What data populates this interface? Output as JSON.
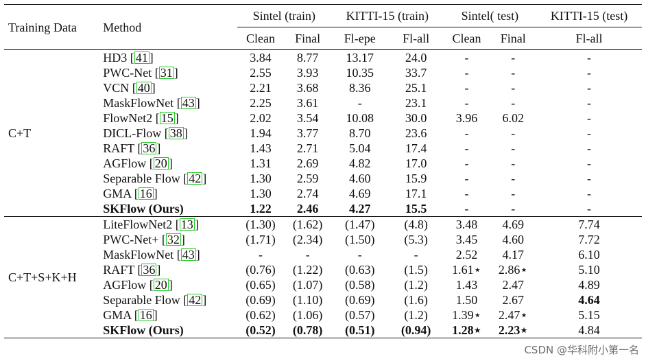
{
  "header": {
    "training_data": "Training Data",
    "method": "Method",
    "groups": [
      "Sintel (train)",
      "KITTI-15 (train)",
      "Sintel( test)",
      "KITTI-15 (test)"
    ],
    "subcols": [
      "Clean",
      "Final",
      "Fl-epe",
      "Fl-all",
      "Clean",
      "Final",
      "Fl-all"
    ]
  },
  "sections": [
    {
      "label": "C+T",
      "rows": [
        {
          "method": "HD3",
          "cite": "41",
          "vals": [
            "3.84",
            "8.77",
            "13.17",
            "24.0",
            "-",
            "-",
            "-"
          ]
        },
        {
          "method": "PWC-Net",
          "cite": "31",
          "vals": [
            "2.55",
            "3.93",
            "10.35",
            "33.7",
            "-",
            "-",
            "-"
          ]
        },
        {
          "method": "VCN",
          "cite": "40",
          "vals": [
            "2.21",
            "3.68",
            "8.36",
            "25.1",
            "-",
            "-",
            "-"
          ]
        },
        {
          "method": "MaskFlowNet",
          "cite": "43",
          "vals": [
            "2.25",
            "3.61",
            "-",
            "23.1",
            "-",
            "-",
            "-"
          ]
        },
        {
          "method": "FlowNet2",
          "cite": "15",
          "vals": [
            "2.02",
            "3.54",
            "10.08",
            "30.0",
            "3.96",
            "6.02",
            "-"
          ]
        },
        {
          "method": "DICL-Flow",
          "cite": "38",
          "vals": [
            "1.94",
            "3.77",
            "8.70",
            "23.6",
            "-",
            "-",
            "-"
          ]
        },
        {
          "method": "RAFT",
          "cite": "36",
          "vals": [
            "1.43",
            "2.71",
            "5.04",
            "17.4",
            "-",
            "-",
            "-"
          ]
        },
        {
          "method": "AGFlow",
          "cite": "20",
          "vals": [
            "1.31",
            "2.69",
            "4.82",
            "17.0",
            "-",
            "-",
            "-"
          ]
        },
        {
          "method": "Separable Flow",
          "cite": "42",
          "vals": [
            "1.30",
            "2.59",
            "4.60",
            "15.9",
            "-",
            "-",
            "-"
          ]
        },
        {
          "method": "GMA",
          "cite": "16",
          "vals": [
            "1.30",
            "2.74",
            "4.69",
            "17.1",
            "-",
            "-",
            "-"
          ]
        },
        {
          "method": "SKFlow (Ours)",
          "cite": "",
          "bold": true,
          "vals": [
            "1.22",
            "2.46",
            "4.27",
            "15.5",
            "-",
            "-",
            "-"
          ]
        }
      ]
    },
    {
      "label": "C+T+S+K+H",
      "rows": [
        {
          "method": "LiteFlowNet2",
          "cite": "13",
          "vals": [
            "(1.30)",
            "(1.62)",
            "(1.47)",
            "(4.8)",
            "3.48",
            "4.69",
            "7.74"
          ]
        },
        {
          "method": "PWC-Net+",
          "cite": "32",
          "vals": [
            "(1.71)",
            "(2.34)",
            "(1.50)",
            "(5.3)",
            "3.45",
            "4.60",
            "7.72"
          ]
        },
        {
          "method": "MaskFlowNet",
          "cite": "43",
          "vals": [
            "-",
            "-",
            "-",
            "-",
            "2.52",
            "4.17",
            "6.10"
          ]
        },
        {
          "method": "RAFT",
          "cite": "36",
          "vals": [
            "(0.76)",
            "(1.22)",
            "(0.63)",
            "(1.5)",
            "1.61⋆",
            "2.86⋆",
            "5.10"
          ]
        },
        {
          "method": "AGFlow",
          "cite": "20",
          "vals": [
            "(0.65)",
            "(1.07)",
            "(0.58)",
            "(1.2)",
            "1.43",
            "2.47",
            "4.89"
          ]
        },
        {
          "method": "Separable Flow",
          "cite": "42",
          "vals": [
            "(0.69)",
            "(1.10)",
            "(0.69)",
            "(1.6)",
            "1.50",
            "2.67",
            "4.64"
          ],
          "bold_cols": [
            6
          ]
        },
        {
          "method": "GMA",
          "cite": "16",
          "vals": [
            "(0.62)",
            "(1.06)",
            "(0.57)",
            "(1.2)",
            "1.39⋆",
            "2.47⋆",
            "5.15"
          ]
        },
        {
          "method": "SKFlow (Ours)",
          "cite": "",
          "bold": true,
          "vals": [
            "(0.52)",
            "(0.78)",
            "(0.51)",
            "(0.94)",
            "1.28⋆",
            "2.23⋆",
            "4.84"
          ],
          "bold_cols": [
            0,
            1,
            2,
            3,
            4,
            5
          ]
        }
      ]
    }
  ],
  "watermark": "CSDN @华科附小第一名"
}
